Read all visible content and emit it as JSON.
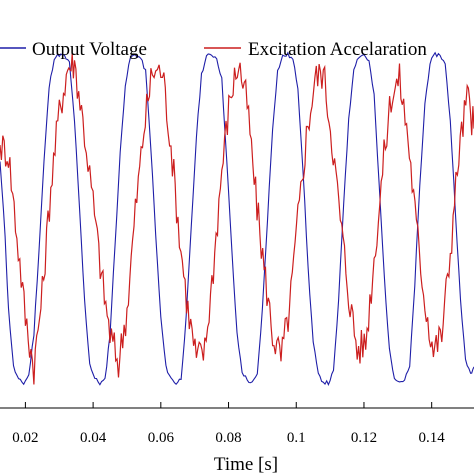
{
  "chart_data": {
    "type": "line",
    "xlabel": "Time [s]",
    "ylabel": "",
    "title": "",
    "xlim": [
      0.0125,
      0.1525
    ],
    "ylim": [
      -1.15,
      1.15
    ],
    "x_ticks": [
      0.02,
      0.04,
      0.06,
      0.08,
      0.1,
      0.12,
      0.14
    ],
    "x_tick_labels": [
      "0.02",
      "0.04",
      "0.06",
      "0.08",
      "0.1",
      "0.12",
      "0.14"
    ],
    "grid": false,
    "legend_position": "top",
    "colors": {
      "output_voltage": "#1f1fa8",
      "excitation_acceleration": "#cc1f1f"
    },
    "series": [
      {
        "name": "Output Voltage",
        "color": "#1f1fa8",
        "x": [
          0.0125,
          0.014,
          0.015,
          0.0165,
          0.018,
          0.0195,
          0.021,
          0.0225,
          0.024,
          0.0255,
          0.027,
          0.0285,
          0.03,
          0.0315,
          0.033,
          0.0345,
          0.036,
          0.0375,
          0.039,
          0.0405,
          0.042,
          0.0435,
          0.045,
          0.0465,
          0.048,
          0.0495,
          0.051,
          0.0525,
          0.054,
          0.0555,
          0.057,
          0.0585,
          0.06,
          0.0615,
          0.063,
          0.0645,
          0.066,
          0.0675,
          0.069,
          0.0705,
          0.072,
          0.0735,
          0.075,
          0.0765,
          0.078,
          0.0795,
          0.081,
          0.0825,
          0.084,
          0.0855,
          0.087,
          0.0885,
          0.09,
          0.0915,
          0.093,
          0.0945,
          0.096,
          0.0975,
          0.099,
          0.1005,
          0.102,
          0.1035,
          0.105,
          0.1065,
          0.108,
          0.1095,
          0.111,
          0.1125,
          0.114,
          0.1155,
          0.117,
          0.1185,
          0.12,
          0.1215,
          0.123,
          0.1245,
          0.126,
          0.1275,
          0.129,
          0.1305,
          0.132,
          0.1335,
          0.135,
          0.1365,
          0.138,
          0.1395,
          0.141,
          0.1425,
          0.144,
          0.1455,
          0.147,
          0.1485,
          0.15,
          0.1515,
          0.1525
        ],
        "y": [
          0.35,
          -0.1,
          -0.55,
          -0.9,
          -0.98,
          -1.0,
          -0.95,
          -0.7,
          -0.2,
          0.35,
          0.8,
          0.98,
          1.0,
          0.99,
          0.95,
          0.6,
          0.05,
          -0.5,
          -0.88,
          -0.97,
          -1.0,
          -0.98,
          -0.7,
          -0.15,
          0.4,
          0.82,
          0.98,
          1.0,
          0.98,
          0.9,
          0.45,
          -0.1,
          -0.6,
          -0.9,
          -0.97,
          -1.0,
          -0.97,
          -0.6,
          -0.05,
          0.5,
          0.88,
          0.99,
          1.0,
          0.98,
          0.85,
          0.35,
          -0.2,
          -0.7,
          -0.93,
          -0.98,
          -1.0,
          -0.95,
          -0.55,
          0.0,
          0.55,
          0.9,
          0.99,
          1.0,
          0.97,
          0.8,
          0.3,
          -0.3,
          -0.75,
          -0.95,
          -0.99,
          -1.0,
          -0.93,
          -0.5,
          0.1,
          0.6,
          0.92,
          0.99,
          1.0,
          0.96,
          0.75,
          0.2,
          -0.35,
          -0.8,
          -0.96,
          -0.99,
          -0.98,
          -0.9,
          -0.4,
          0.2,
          0.7,
          0.95,
          1.0,
          1.0,
          0.94,
          0.6,
          0.05,
          -0.5,
          -0.85,
          -0.95,
          -0.9
        ]
      },
      {
        "name": "Excitation Accelaration",
        "color": "#cc1f1f",
        "x": [
          0.0125,
          0.015,
          0.0175,
          0.02,
          0.0225,
          0.025,
          0.0275,
          0.03,
          0.0325,
          0.0345,
          0.037,
          0.04,
          0.0425,
          0.045,
          0.0475,
          0.05,
          0.0525,
          0.055,
          0.0575,
          0.0605,
          0.063,
          0.0655,
          0.068,
          0.0705,
          0.073,
          0.0755,
          0.078,
          0.0805,
          0.083,
          0.0855,
          0.088,
          0.0905,
          0.093,
          0.0955,
          0.098,
          0.1005,
          0.103,
          0.1055,
          0.108,
          0.1105,
          0.113,
          0.1155,
          0.118,
          0.1205,
          0.123,
          0.1255,
          0.128,
          0.1305,
          0.133,
          0.1355,
          0.138,
          0.1405,
          0.143,
          0.1455,
          0.148,
          0.1505,
          0.1525
        ],
        "y": [
          0.45,
          0.4,
          -0.1,
          -0.6,
          -0.9,
          -0.45,
          0.2,
          0.65,
          0.92,
          0.95,
          0.6,
          0.1,
          -0.35,
          -0.7,
          -0.88,
          -0.55,
          0.05,
          0.55,
          0.9,
          0.9,
          0.45,
          -0.1,
          -0.55,
          -0.85,
          -0.8,
          -0.3,
          0.3,
          0.75,
          0.95,
          0.7,
          0.15,
          -0.3,
          -0.7,
          -0.85,
          -0.55,
          0.0,
          0.5,
          0.85,
          0.9,
          0.5,
          0.0,
          -0.45,
          -0.8,
          -0.75,
          -0.25,
          0.3,
          0.75,
          0.85,
          0.5,
          -0.05,
          -0.5,
          -0.8,
          -0.7,
          -0.2,
          0.4,
          0.75,
          0.55
        ]
      }
    ]
  }
}
